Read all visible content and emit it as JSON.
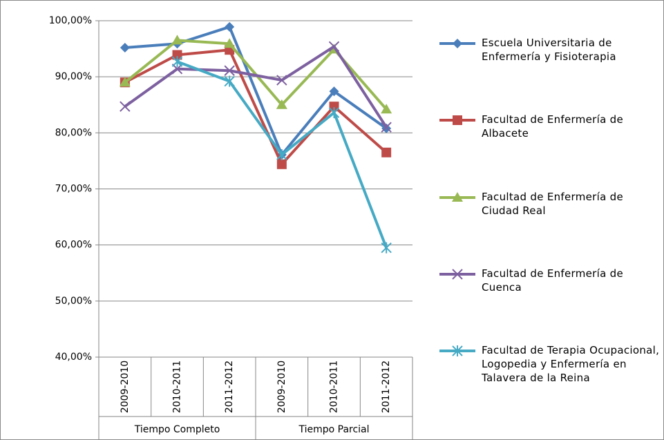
{
  "chart_data": {
    "type": "line",
    "categories": [
      "2009-2010",
      "2010-2011",
      "2011-2012",
      "2009-2010",
      "2010-2011",
      "2011-2012"
    ],
    "groups": [
      "Tiempo Completo",
      "Tiempo Parcial"
    ],
    "ylim": [
      40,
      100
    ],
    "yticks": [
      {
        "value": 40,
        "label": "40,00%"
      },
      {
        "value": 50,
        "label": "50,00%"
      },
      {
        "value": 60,
        "label": "60,00%"
      },
      {
        "value": 70,
        "label": "70,00%"
      },
      {
        "value": 80,
        "label": "80,00%"
      },
      {
        "value": 90,
        "label": "90,00%"
      },
      {
        "value": 100,
        "label": "100,00%"
      }
    ],
    "grid": true,
    "legend": "right",
    "series": [
      {
        "name": "Escuela Universitaria de Enfermería y Fisioterapia",
        "color": "#4a7ebb",
        "marker": "diamond",
        "values": [
          95.2,
          95.9,
          98.9,
          76.1,
          87.4,
          80.8
        ]
      },
      {
        "name": "Facultad de Enfermería de Albacete",
        "color": "#be4b48",
        "marker": "square",
        "values": [
          89.0,
          93.9,
          94.8,
          74.4,
          84.7,
          76.5
        ]
      },
      {
        "name": "Facultad de Enfermería de Ciudad Real",
        "color": "#98b954",
        "marker": "triangle",
        "values": [
          89.0,
          96.5,
          95.9,
          85.0,
          94.9,
          84.2
        ]
      },
      {
        "name": "Facultad de Enfermería de Cuenca",
        "color": "#7d60a0",
        "marker": "x",
        "values": [
          84.7,
          91.4,
          91.1,
          89.4,
          95.4,
          81.0
        ]
      },
      {
        "name": "Facultad de Terapia Ocupacional, Logopedia y Enfermería en Talavera de la Reina",
        "color": "#46aac5",
        "marker": "star",
        "values": [
          null,
          92.7,
          89.2,
          76.1,
          83.6,
          59.5
        ]
      }
    ]
  }
}
